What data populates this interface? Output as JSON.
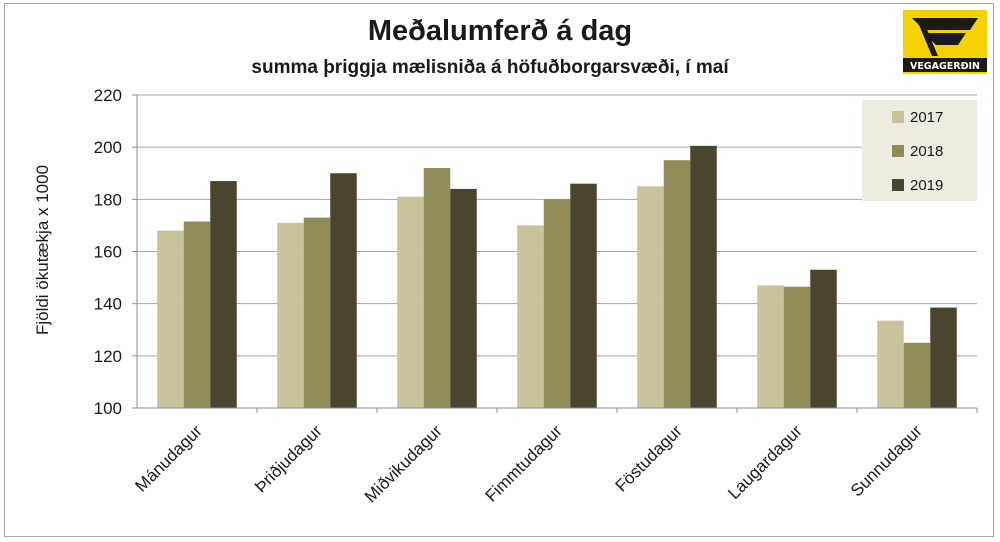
{
  "chart_data": {
    "type": "bar",
    "title": "Meðalumferð á dag",
    "subtitle": "summa þriggja mælisniða á höfuðborgarsvæði, í maí",
    "ylabel": "Fjöldi ökutækja x 1000",
    "xlabel": "",
    "ylim": [
      100,
      220
    ],
    "yticks": [
      100,
      120,
      140,
      160,
      180,
      200,
      220
    ],
    "grid": true,
    "legend_position": "top-right",
    "categories": [
      "Mánudagur",
      "Þriðjudagur",
      "Miðvikudagur",
      "Fimmtudagur",
      "Föstudagur",
      "Laugardagur",
      "Sunnudagur"
    ],
    "series": [
      {
        "name": "2017",
        "color": "#c9c29b",
        "values": [
          168,
          171,
          181,
          170,
          185,
          147,
          133.5
        ]
      },
      {
        "name": "2018",
        "color": "#918b58",
        "values": [
          171.5,
          173,
          192,
          180,
          195,
          146.5,
          125
        ]
      },
      {
        "name": "2019",
        "color": "#4a452e",
        "values": [
          187,
          190,
          184,
          186,
          200.5,
          153,
          138.5
        ]
      }
    ]
  },
  "logo": {
    "text": "VEGAGERÐIN",
    "background": "#f5d200",
    "icon": "road-authority-logo-icon"
  }
}
